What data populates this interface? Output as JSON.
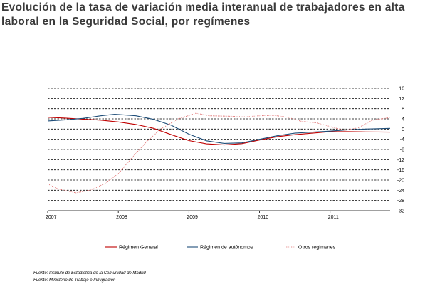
{
  "chart_data": {
    "type": "line",
    "title": "Evolución de la tasa de variación media interanual de trabajadores en alta laboral en la Seguridad Social, por  regímenes",
    "x_ticks": [
      "2007",
      "2008",
      "2009",
      "2010",
      "2011"
    ],
    "y_ticks": [
      "16",
      "12",
      "8",
      "4",
      "0",
      "-4",
      "-8",
      "-12",
      "-16",
      "-20",
      "-24",
      "-28",
      "-32"
    ],
    "ylim": [
      -32,
      16
    ],
    "xlim": [
      2007.0,
      2011.85
    ],
    "grid": "horizontal dashed",
    "legend_position": "bottom",
    "series": [
      {
        "name": "Régimen General",
        "color": "#c00000",
        "style": "solid",
        "x": [
          2007.0,
          2007.25,
          2007.5,
          2007.75,
          2008.0,
          2008.25,
          2008.5,
          2008.75,
          2009.0,
          2009.25,
          2009.5,
          2009.75,
          2010.0,
          2010.25,
          2010.5,
          2010.75,
          2011.0,
          2011.25,
          2011.5,
          2011.85
        ],
        "y": [
          4.6,
          4.3,
          3.9,
          3.5,
          2.8,
          1.8,
          0.3,
          -2.2,
          -4.5,
          -5.8,
          -6.2,
          -5.7,
          -4.3,
          -3.0,
          -2.2,
          -1.6,
          -1.0,
          -1.0,
          -1.1,
          -1.2
        ]
      },
      {
        "name": "Régimen de autónomos",
        "color": "#1f4e79",
        "style": "solid",
        "x": [
          2007.0,
          2007.25,
          2007.5,
          2007.75,
          2007.95,
          2008.25,
          2008.5,
          2008.75,
          2009.0,
          2009.25,
          2009.5,
          2009.75,
          2010.0,
          2010.25,
          2010.5,
          2010.75,
          2011.0,
          2011.25,
          2011.5,
          2011.85
        ],
        "y": [
          3.2,
          3.6,
          4.2,
          5.2,
          5.8,
          5.2,
          3.8,
          1.5,
          -2.0,
          -4.6,
          -5.6,
          -5.4,
          -4.0,
          -2.6,
          -1.6,
          -1.2,
          -0.8,
          -0.3,
          0.0,
          0.3
        ]
      },
      {
        "name": "Otros regímenes",
        "color": "#e07070",
        "style": "dotted",
        "x": [
          2007.0,
          2007.15,
          2007.4,
          2007.6,
          2007.8,
          2008.0,
          2008.2,
          2008.4,
          2008.6,
          2008.85,
          2009.1,
          2009.3,
          2009.6,
          2009.8,
          2010.0,
          2010.2,
          2010.4,
          2010.6,
          2010.8,
          2011.0,
          2011.2,
          2011.4,
          2011.6,
          2011.85
        ],
        "y": [
          -21.5,
          -23.5,
          -25.0,
          -24.0,
          -21.5,
          -17.5,
          -11.0,
          -5.0,
          0.0,
          4.0,
          6.2,
          5.2,
          5.0,
          4.8,
          5.2,
          5.4,
          4.6,
          3.0,
          2.5,
          1.0,
          -0.5,
          0.5,
          3.5,
          4.5
        ]
      }
    ]
  },
  "sources": [
    "Fuente: Instituto de Estadística de la Comunidad de Madrid",
    "Fuente: Ministerio de Trabajo e Inmigración"
  ]
}
